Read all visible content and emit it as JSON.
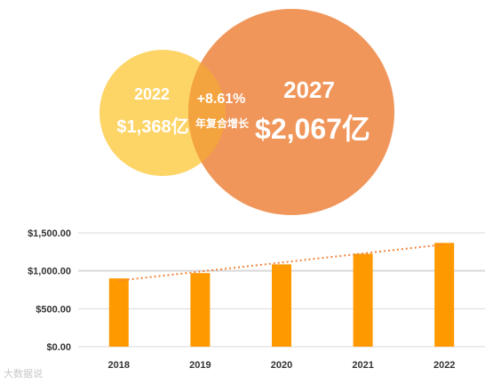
{
  "venn": {
    "left": {
      "year": "2022",
      "value": "$1,368亿",
      "color": "#fdd466"
    },
    "right": {
      "year": "2027",
      "value": "$2,067亿",
      "color": "#f0965a"
    },
    "overlap": {
      "growth": "+8.61%",
      "label": "年复合增长",
      "color": "#f4a43e"
    }
  },
  "chart_data": {
    "type": "bar",
    "categories": [
      "2018",
      "2019",
      "2020",
      "2021",
      "2022"
    ],
    "values": [
      900,
      970,
      1085,
      1225,
      1368
    ],
    "ylim": [
      0,
      1500
    ],
    "yticks": [
      "$0.00",
      "$500.00",
      "$1,000.00",
      "$1,500.00"
    ],
    "ytick_values": [
      0,
      500,
      1000,
      1500
    ],
    "bar_color": "#ff9900",
    "trendline": true,
    "trend_color": "#f0843c",
    "grid": true
  },
  "watermark": "大数据说"
}
